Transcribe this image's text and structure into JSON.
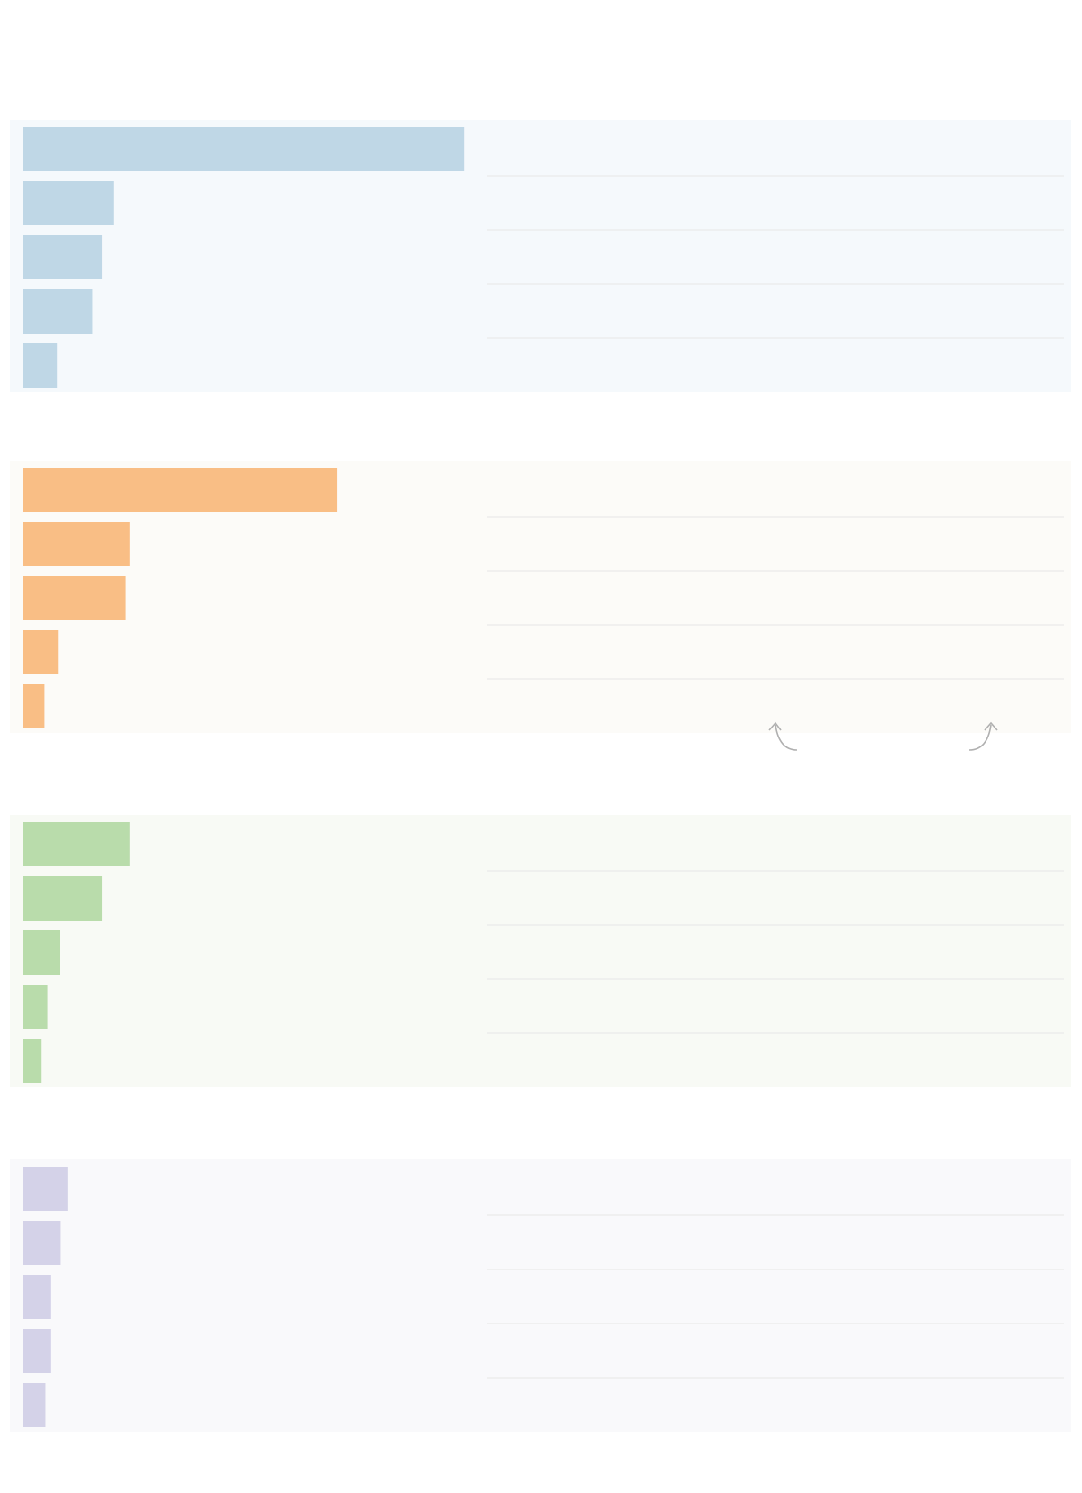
{
  "chart_data": [
    {
      "type": "bar",
      "orientation": "horizontal",
      "categories": [
        null,
        null,
        null,
        null,
        null
      ],
      "values": [
        462,
        95,
        83,
        73,
        36
      ],
      "color": "#bfd7e6",
      "background": "#f5f9fc",
      "xlim": [
        0,
        1000
      ]
    },
    {
      "type": "bar",
      "orientation": "horizontal",
      "categories": [
        null,
        null,
        null,
        null,
        null
      ],
      "values": [
        329,
        112,
        108,
        37,
        23
      ],
      "color": "#f9be85",
      "background": "#fcfbf8",
      "xlim": [
        0,
        1000
      ]
    },
    {
      "type": "bar",
      "orientation": "horizontal",
      "categories": [
        null,
        null,
        null,
        null,
        null
      ],
      "values": [
        112,
        83,
        39,
        26,
        20
      ],
      "color": "#b9dcab",
      "background": "#f8faf5",
      "xlim": [
        0,
        1000
      ]
    },
    {
      "type": "bar",
      "orientation": "horizontal",
      "categories": [
        null,
        null,
        null,
        null,
        null
      ],
      "values": [
        47,
        40,
        30,
        30,
        24
      ],
      "color": "#d4d2e8",
      "background": "#f9f9fb",
      "xlim": [
        0,
        1000
      ]
    }
  ]
}
